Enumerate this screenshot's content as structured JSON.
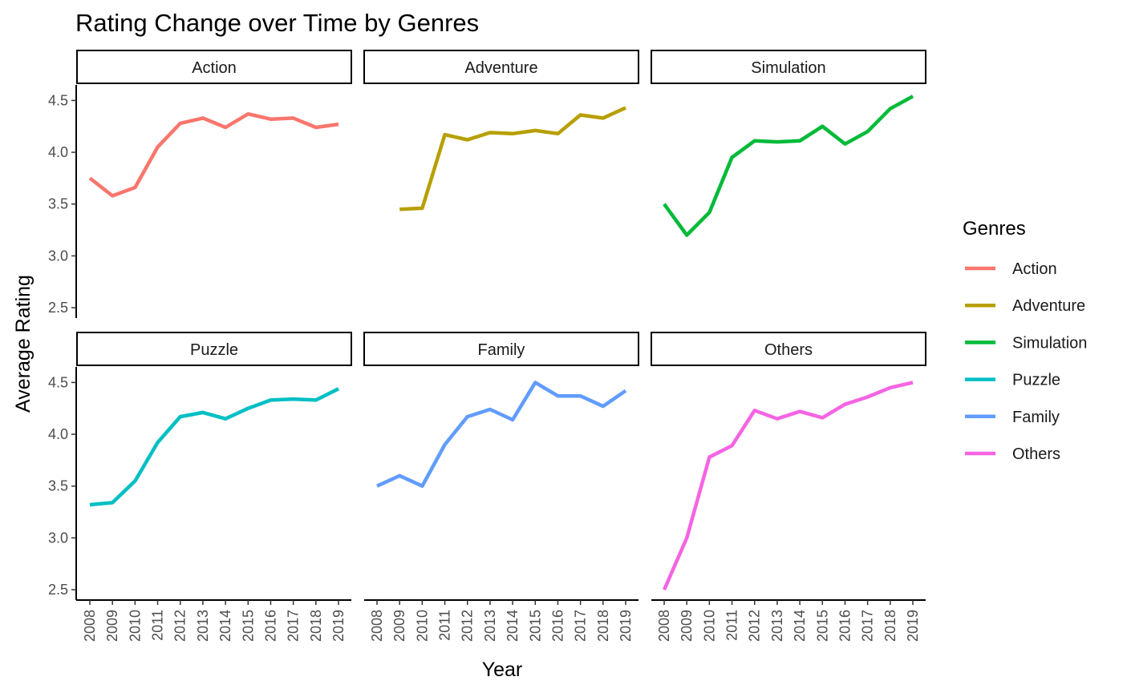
{
  "chart_data": {
    "type": "line",
    "title": "Rating Change over Time by Genres",
    "xlabel": "Year",
    "ylabel": "Average Rating",
    "x": [
      2008,
      2009,
      2010,
      2011,
      2012,
      2013,
      2014,
      2015,
      2016,
      2017,
      2018,
      2019
    ],
    "x_tick_labels": [
      "2008",
      "2009",
      "2010",
      "2011",
      "2012",
      "2013",
      "2014",
      "2015",
      "2016",
      "2017",
      "2018",
      "2019"
    ],
    "ylim": [
      2.4,
      4.65
    ],
    "y_ticks": [
      2.5,
      3.0,
      3.5,
      4.0,
      4.5
    ],
    "y_tick_labels": [
      "2.5",
      "3.0",
      "3.5",
      "4.0",
      "4.5"
    ],
    "grid": false,
    "facet_layout": "2 rows x 3 columns",
    "legend": {
      "title": "Genres",
      "placement": "right"
    },
    "series": [
      {
        "name": "Action",
        "color": "#F8766D",
        "values": [
          3.75,
          3.58,
          3.66,
          4.05,
          4.28,
          4.33,
          4.24,
          4.37,
          4.32,
          4.33,
          4.24,
          4.27
        ]
      },
      {
        "name": "Adventure",
        "color": "#B79F00",
        "values": [
          null,
          3.45,
          3.46,
          4.17,
          4.12,
          4.19,
          4.18,
          4.21,
          4.18,
          4.36,
          4.33,
          4.43
        ]
      },
      {
        "name": "Simulation",
        "color": "#00BA38",
        "values": [
          3.5,
          3.2,
          3.42,
          3.95,
          4.11,
          4.1,
          4.11,
          4.25,
          4.08,
          4.2,
          4.42,
          4.54
        ]
      },
      {
        "name": "Puzzle",
        "color": "#00BFC4",
        "values": [
          3.32,
          3.34,
          3.55,
          3.92,
          4.17,
          4.21,
          4.15,
          4.25,
          4.33,
          4.34,
          4.33,
          4.44
        ]
      },
      {
        "name": "Family",
        "color": "#619CFF",
        "values": [
          3.5,
          3.6,
          3.5,
          3.9,
          4.17,
          4.24,
          4.14,
          4.5,
          4.37,
          4.37,
          4.27,
          4.42
        ]
      },
      {
        "name": "Others",
        "color": "#F564E3",
        "values": [
          2.5,
          3.0,
          3.78,
          3.89,
          4.23,
          4.15,
          4.22,
          4.16,
          4.29,
          4.36,
          4.45,
          4.5
        ]
      }
    ]
  }
}
